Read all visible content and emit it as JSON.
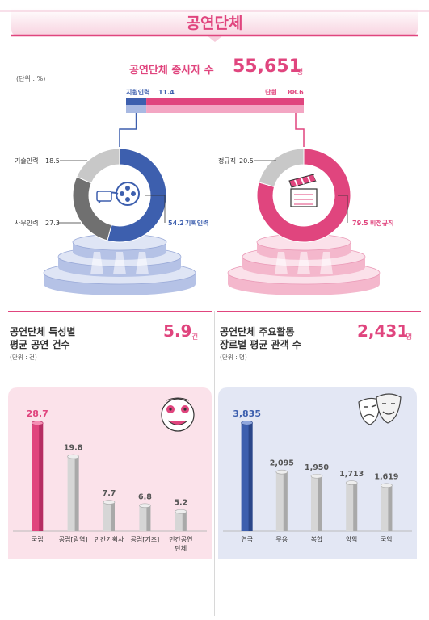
{
  "header": {
    "title": "공연단체"
  },
  "top": {
    "headline_label": "공연단체 종사자 수",
    "headline_value": "55,651",
    "headline_unit": "명",
    "unit_note": "(단위 : %)"
  },
  "bottom_left": {
    "title_line1": "공연단체 특성별",
    "title_line2": "평균 공연 건수",
    "headline_value": "5.9",
    "headline_unit": "건",
    "unit_note": "(단위 : 건)"
  },
  "bottom_right": {
    "title_line1": "공연단체 주요활동",
    "title_line2": "장르별 평균 관객 수",
    "headline_value": "2,431",
    "headline_unit": "명",
    "unit_note": "(단위 : 명)"
  },
  "icons": {
    "film-reel": "film-reel-icon",
    "clapperboard": "clapperboard-icon",
    "mask": "mask-icon",
    "theater-masks": "theater-masks-icon"
  },
  "colors": {
    "pink": "#e0457e",
    "blue": "#3d5fae",
    "blue_light": "#7f96cf",
    "gray_dark": "#707070",
    "gray_light": "#c8c8c8",
    "pink_light": "#f4c2d6",
    "blue_bg": "#e3e7f4",
    "pink_bg": "#fbe2ea"
  },
  "chart_data": [
    {
      "id": "split-bar",
      "type": "bar",
      "orientation": "horizontal-stacked",
      "categories": [
        "지원인력",
        "단원"
      ],
      "values": [
        11.4,
        88.6
      ],
      "value_labels": [
        "11.4",
        "88.6"
      ]
    },
    {
      "id": "support-donut",
      "type": "pie",
      "categories": [
        "기획인력",
        "사무인력",
        "기술인력"
      ],
      "values": [
        54.2,
        27.3,
        18.5
      ],
      "value_labels": [
        "54.2",
        "27.3",
        "18.5"
      ]
    },
    {
      "id": "member-donut",
      "type": "pie",
      "categories": [
        "비정규직",
        "정규직"
      ],
      "values": [
        79.5,
        20.5
      ],
      "value_labels": [
        "79.5",
        "20.5"
      ]
    },
    {
      "id": "performances",
      "type": "bar",
      "categories": [
        "국립",
        "공립[광역]",
        "민간기획사",
        "공립[기초]",
        "민간공연\n단체"
      ],
      "values": [
        28.7,
        19.8,
        7.7,
        6.8,
        5.2
      ],
      "value_labels": [
        "28.7",
        "19.8",
        "7.7",
        "6.8",
        "5.2"
      ],
      "ylim": [
        0,
        30
      ]
    },
    {
      "id": "audience",
      "type": "bar",
      "categories": [
        "연극",
        "무용",
        "복합",
        "양악",
        "국악"
      ],
      "values": [
        3835,
        2095,
        1950,
        1713,
        1619
      ],
      "value_labels": [
        "3,835",
        "2,095",
        "1,950",
        "1,713",
        "1,619"
      ],
      "ylim": [
        0,
        4000
      ]
    }
  ]
}
